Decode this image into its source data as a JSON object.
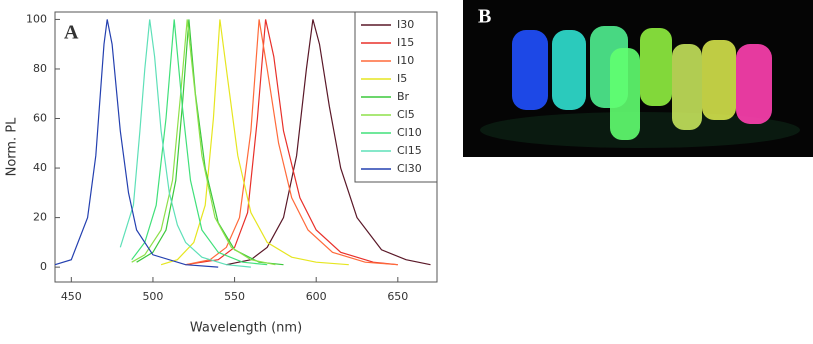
{
  "chart_data": {
    "type": "line",
    "panel_label": "A",
    "photo_label": "B",
    "xlabel": "Wavelength (nm)",
    "ylabel": "Norm. PL",
    "xlim": [
      440,
      674
    ],
    "ylim": [
      -6,
      103
    ],
    "xticks": [
      450,
      500,
      550,
      600,
      650
    ],
    "yticks": [
      0,
      20,
      40,
      60,
      80,
      100
    ],
    "legend": "upper right",
    "series": [
      {
        "name": "I30",
        "color": "#5a1828",
        "x": [
          545,
          560,
          570,
          580,
          588,
          594,
          598,
          602,
          608,
          615,
          625,
          640,
          655,
          670
        ],
        "values": [
          1,
          3,
          8,
          20,
          45,
          80,
          100,
          90,
          65,
          40,
          20,
          7,
          3,
          1
        ]
      },
      {
        "name": "I15",
        "color": "#e8302a",
        "x": [
          520,
          540,
          550,
          558,
          564,
          569,
          574,
          580,
          590,
          600,
          615,
          635,
          650
        ],
        "values": [
          1,
          3,
          8,
          22,
          60,
          100,
          85,
          55,
          28,
          15,
          6,
          2,
          1
        ]
      },
      {
        "name": "I10",
        "color": "#ff6a3a",
        "x": [
          520,
          535,
          545,
          553,
          560,
          565,
          570,
          577,
          585,
          595,
          610,
          630,
          650
        ],
        "values": [
          1,
          3,
          8,
          20,
          55,
          100,
          80,
          50,
          28,
          15,
          6,
          2,
          1
        ]
      },
      {
        "name": "I5",
        "color": "#e6e620",
        "x": [
          505,
          515,
          525,
          532,
          537,
          541,
          546,
          552,
          560,
          570,
          585,
          600,
          620
        ],
        "values": [
          1,
          3,
          10,
          25,
          60,
          100,
          75,
          45,
          22,
          10,
          4,
          2,
          1
        ]
      },
      {
        "name": "Br",
        "color": "#3cc83c",
        "x": [
          490,
          500,
          508,
          514,
          518,
          522,
          526,
          532,
          540,
          550,
          565,
          580
        ],
        "values": [
          2,
          6,
          15,
          35,
          65,
          100,
          70,
          40,
          18,
          7,
          2,
          1
        ]
      },
      {
        "name": "Cl5",
        "color": "#8ee04a",
        "x": [
          487,
          495,
          505,
          512,
          517,
          521,
          525,
          530,
          538,
          548,
          560,
          575
        ],
        "values": [
          2,
          5,
          15,
          35,
          70,
          100,
          75,
          45,
          20,
          8,
          3,
          1
        ]
      },
      {
        "name": "Cl10",
        "color": "#40e07a",
        "x": [
          487,
          495,
          502,
          508,
          513,
          518,
          523,
          530,
          540,
          555,
          570
        ],
        "values": [
          3,
          10,
          25,
          60,
          100,
          65,
          35,
          15,
          6,
          2,
          1
        ]
      },
      {
        "name": "Cl15",
        "color": "#5ee0b8",
        "x": [
          480,
          488,
          492,
          495,
          498,
          501,
          505,
          510,
          515,
          520,
          530,
          545,
          560
        ],
        "values": [
          8,
          25,
          55,
          80,
          100,
          85,
          55,
          30,
          17,
          10,
          4,
          1,
          0
        ]
      },
      {
        "name": "Cl30",
        "color": "#2440b0",
        "x": [
          440,
          450,
          460,
          465,
          470,
          472,
          475,
          480,
          485,
          490,
          500,
          520,
          540
        ],
        "values": [
          1,
          3,
          20,
          45,
          90,
          100,
          90,
          55,
          30,
          15,
          5,
          1,
          0
        ]
      }
    ]
  }
}
